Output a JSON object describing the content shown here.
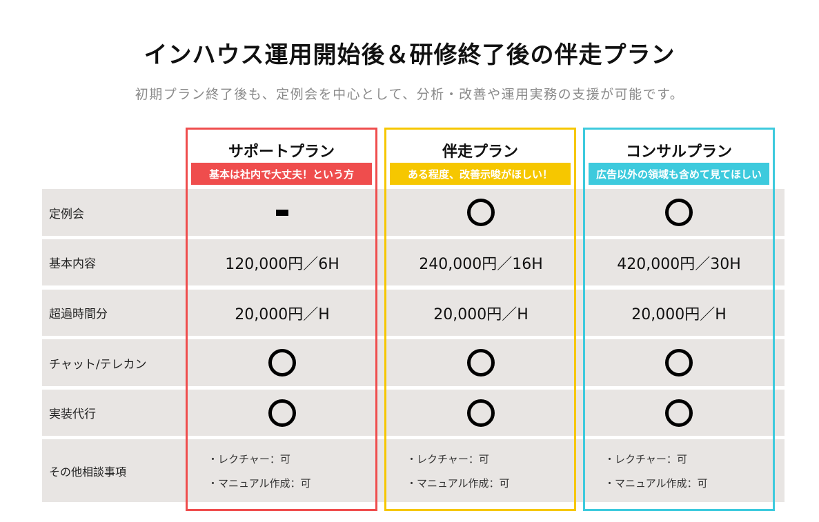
{
  "title": "インハウス運用開始後＆研修終了後の伴走プラン",
  "subtitle": "初期プラン終了後も、定例会を中心として、分析・改善や運用実務の支援が可能です。",
  "colors": {
    "support": "#ef4d4d",
    "bansou": "#f6c700",
    "consul": "#3dcadd",
    "row_bg": "#e8e5e3"
  },
  "plans": [
    {
      "name": "サポートプラン",
      "tag": "基本は社内で大丈夫！という方"
    },
    {
      "name": "伴走プラン",
      "tag": "ある程度、改善示唆がほしい！"
    },
    {
      "name": "コンサルプラン",
      "tag": "広告以外の領域も含めて見てほしい"
    }
  ],
  "rows": [
    {
      "label": "定例会",
      "values": [
        "dash-icon",
        "circle-icon",
        "circle-icon"
      ]
    },
    {
      "label": "基本内容",
      "values": [
        "120,000円／6H",
        "240,000円／16H",
        "420,000円／30H"
      ]
    },
    {
      "label": "超過時間分",
      "values": [
        "20,000円／H",
        "20,000円／H",
        "20,000円／H"
      ]
    },
    {
      "label": "チャット/テレカン",
      "values": [
        "circle-icon",
        "circle-icon",
        "circle-icon"
      ]
    },
    {
      "label": "実装代行",
      "values": [
        "circle-icon",
        "circle-icon",
        "circle-icon"
      ]
    },
    {
      "label": "その他相談事項",
      "notes": [
        [
          "・レクチャー：可",
          "・マニュアル作成：可"
        ],
        [
          "・レクチャー：可",
          "・マニュアル作成：可"
        ],
        [
          "・レクチャー：可",
          "・マニュアル作成：可"
        ]
      ]
    }
  ]
}
